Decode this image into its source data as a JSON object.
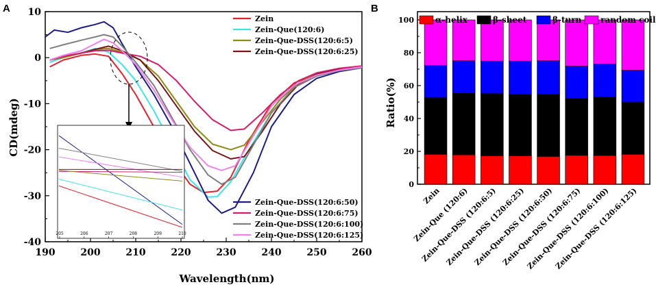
{
  "panel_labels": {
    "a": "A",
    "b": "B"
  },
  "chart_data": [
    {
      "type": "line",
      "panel": "A",
      "xlabel": "Wavelength(nm)",
      "ylabel": "CD(mdeg)",
      "xlim": [
        190,
        260
      ],
      "ylim": [
        -40,
        10
      ],
      "xticks": [
        190,
        200,
        210,
        220,
        230,
        240,
        250,
        260
      ],
      "yticks": [
        -40,
        -30,
        -20,
        -10,
        0,
        10
      ],
      "series": [
        {
          "name": "Zein",
          "color": "#e8202a",
          "points": [
            [
              191,
              -2.0
            ],
            [
              194,
              -0.5
            ],
            [
              198,
              0.5
            ],
            [
              201,
              0.8
            ],
            [
              204,
              0.3
            ],
            [
              207,
              -3.5
            ],
            [
              210,
              -8.0
            ],
            [
              214,
              -15.0
            ],
            [
              218,
              -22.0
            ],
            [
              222,
              -27.5
            ],
            [
              225,
              -29.3
            ],
            [
              228,
              -29.0
            ],
            [
              231,
              -26.0
            ],
            [
              235,
              -18.0
            ],
            [
              240,
              -10.0
            ],
            [
              245,
              -5.5
            ],
            [
              250,
              -3.5
            ],
            [
              255,
              -2.5
            ],
            [
              260,
              -2.0
            ]
          ]
        },
        {
          "name": "Zein-Que(120:6)",
          "color": "#39e6ec",
          "points": [
            [
              191,
              -1.0
            ],
            [
              194,
              0.0
            ],
            [
              198,
              1.0
            ],
            [
              201,
              2.0
            ],
            [
              204,
              1.2
            ],
            [
              207,
              -1.5
            ],
            [
              210,
              -5.0
            ],
            [
              214,
              -11.5
            ],
            [
              218,
              -19.0
            ],
            [
              222,
              -26.5
            ],
            [
              226,
              -30.3
            ],
            [
              228,
              -30.2
            ],
            [
              231,
              -27.0
            ],
            [
              235,
              -20.0
            ],
            [
              240,
              -12.0
            ],
            [
              245,
              -6.5
            ],
            [
              250,
              -4.0
            ],
            [
              255,
              -2.8
            ],
            [
              260,
              -2.2
            ]
          ]
        },
        {
          "name": "Zein-Que-DSS(120:6:5)",
          "color": "#8c8c14",
          "points": [
            [
              191,
              -0.5
            ],
            [
              194,
              0.0
            ],
            [
              198,
              1.0
            ],
            [
              201,
              1.8
            ],
            [
              204,
              2.0
            ],
            [
              207,
              1.2
            ],
            [
              211,
              -0.5
            ],
            [
              215,
              -4.0
            ],
            [
              219,
              -9.5
            ],
            [
              223,
              -15.0
            ],
            [
              227,
              -18.8
            ],
            [
              231,
              -20.0
            ],
            [
              234,
              -19.0
            ],
            [
              238,
              -14.0
            ],
            [
              242,
              -9.0
            ],
            [
              246,
              -5.5
            ],
            [
              250,
              -3.5
            ],
            [
              255,
              -2.5
            ],
            [
              260,
              -2.0
            ]
          ]
        },
        {
          "name": "Zein-Que-DSS(120:6:25)",
          "color": "#7a1414",
          "points": [
            [
              191,
              -0.5
            ],
            [
              194,
              0.3
            ],
            [
              198,
              1.0
            ],
            [
              201,
              1.8
            ],
            [
              204,
              2.5
            ],
            [
              207,
              1.5
            ],
            [
              211,
              -0.5
            ],
            [
              215,
              -5.0
            ],
            [
              219,
              -10.5
            ],
            [
              223,
              -16.0
            ],
            [
              227,
              -20.2
            ],
            [
              231,
              -22.0
            ],
            [
              234,
              -21.5
            ],
            [
              238,
              -16.0
            ],
            [
              242,
              -10.0
            ],
            [
              246,
              -5.8
            ],
            [
              250,
              -3.6
            ],
            [
              255,
              -2.5
            ],
            [
              260,
              -2.0
            ]
          ]
        },
        {
          "name": "Zein-Que-DSS(120:6:50)",
          "color": "#1b1b8c",
          "points": [
            [
              190,
              4.5
            ],
            [
              192,
              6.0
            ],
            [
              195,
              5.5
            ],
            [
              198,
              6.5
            ],
            [
              201,
              7.2
            ],
            [
              203,
              7.8
            ],
            [
              205,
              6.5
            ],
            [
              207,
              3.0
            ],
            [
              210,
              -2.0
            ],
            [
              214,
              -8.0
            ],
            [
              218,
              -15.0
            ],
            [
              222,
              -23.0
            ],
            [
              226,
              -31.0
            ],
            [
              229,
              -33.8
            ],
            [
              232,
              -32.5
            ],
            [
              236,
              -25.0
            ],
            [
              240,
              -15.0
            ],
            [
              245,
              -8.0
            ],
            [
              250,
              -4.5
            ],
            [
              255,
              -3.0
            ],
            [
              260,
              -2.2
            ]
          ]
        },
        {
          "name": "Zein-Que-DSS(120:6:75)",
          "color": "#d81b6c",
          "points": [
            [
              191,
              -0.5
            ],
            [
              194,
              0.3
            ],
            [
              198,
              1.0
            ],
            [
              201,
              1.5
            ],
            [
              204,
              1.6
            ],
            [
              207,
              1.0
            ],
            [
              211,
              0.3
            ],
            [
              215,
              -1.5
            ],
            [
              219,
              -5.0
            ],
            [
              223,
              -9.5
            ],
            [
              227,
              -13.5
            ],
            [
              231,
              -15.8
            ],
            [
              234,
              -15.5
            ],
            [
              238,
              -12.0
            ],
            [
              242,
              -8.0
            ],
            [
              246,
              -5.0
            ],
            [
              250,
              -3.3
            ],
            [
              255,
              -2.3
            ],
            [
              260,
              -1.8
            ]
          ]
        },
        {
          "name": "Zein-Que-DSS(120:6:100)",
          "color": "#7f7f7f",
          "points": [
            [
              191,
              2.0
            ],
            [
              194,
              2.8
            ],
            [
              198,
              3.8
            ],
            [
              201,
              4.5
            ],
            [
              203,
              5.0
            ],
            [
              205,
              4.5
            ],
            [
              207,
              2.5
            ],
            [
              210,
              -1.0
            ],
            [
              214,
              -6.0
            ],
            [
              218,
              -13.0
            ],
            [
              222,
              -20.0
            ],
            [
              226,
              -25.5
            ],
            [
              229,
              -27.5
            ],
            [
              232,
              -26.0
            ],
            [
              236,
              -19.0
            ],
            [
              240,
              -12.0
            ],
            [
              245,
              -6.5
            ],
            [
              250,
              -4.0
            ],
            [
              255,
              -2.8
            ],
            [
              260,
              -2.2
            ]
          ]
        },
        {
          "name": "Zein-Que-DSS(120:6:125)",
          "color": "#f080ee",
          "points": [
            [
              191,
              -0.5
            ],
            [
              194,
              0.5
            ],
            [
              198,
              1.5
            ],
            [
              201,
              3.0
            ],
            [
              203,
              4.0
            ],
            [
              205,
              3.2
            ],
            [
              207,
              1.5
            ],
            [
              210,
              -1.5
            ],
            [
              214,
              -7.0
            ],
            [
              218,
              -13.5
            ],
            [
              222,
              -19.5
            ],
            [
              226,
              -23.5
            ],
            [
              229,
              -24.5
            ],
            [
              232,
              -23.5
            ],
            [
              236,
              -17.0
            ],
            [
              240,
              -10.5
            ],
            [
              245,
              -6.0
            ],
            [
              250,
              -3.8
            ],
            [
              255,
              -2.7
            ],
            [
              260,
              -2.0
            ]
          ]
        }
      ],
      "legend_top": [
        "Zein",
        "Zein-Que(120:6)",
        "Zein-Que-DSS(120:6:5)",
        "Zein-Que-DSS(120:6:25)"
      ],
      "legend_bottom": [
        "Zein-Que-DSS(120:6:50)",
        "Zein-Que-DSS(120:6:75)",
        "Zein-Que-DSS(120:6:100)",
        "Zein-Que-DSS(120:6:125)"
      ],
      "inset": {
        "xlim": [
          205,
          210
        ],
        "xticks": [
          205,
          206,
          207,
          208,
          209,
          210
        ],
        "lines": [
          {
            "color": "#1b1b8c",
            "y": [
              0.05,
              0.97
            ]
          },
          {
            "color": "#7f7f7f",
            "y": [
              0.18,
              0.42
            ]
          },
          {
            "color": "#f080ee",
            "y": [
              0.27,
              0.48
            ]
          },
          {
            "color": "#7a1414",
            "y": [
              0.4,
              0.4
            ]
          },
          {
            "color": "#d81b6c",
            "y": [
              0.42,
              0.43
            ]
          },
          {
            "color": "#8c8c14",
            "y": [
              0.41,
              0.52
            ]
          },
          {
            "color": "#39e6ec",
            "y": [
              0.5,
              0.82
            ]
          },
          {
            "color": "#e8202a",
            "y": [
              0.57,
              1.0
            ]
          }
        ]
      }
    },
    {
      "type": "stacked_bar",
      "panel": "B",
      "ylabel": "Ratio(%)",
      "ylim": [
        0,
        100
      ],
      "yticks": [
        0,
        20,
        40,
        60,
        80,
        100
      ],
      "categories": [
        "Zein",
        "Zein-Que (120:6)",
        "Zein-Que-DSS (120:6:5)",
        "Zein-Que-DSS (120:6:25)",
        "Zein-Que-DSS (120:6:50)",
        "Zein-Que-DSS (120:6:75)",
        "Zein-Que-DSS (120:6:100)",
        "Zein-Que-DSS (120:6:125)"
      ],
      "series": [
        {
          "name": "α-helix",
          "color": "#ff0000",
          "values": [
            18.2,
            17.9,
            17.3,
            17.3,
            16.9,
            17.6,
            17.5,
            18.2
          ]
        },
        {
          "name": "β-sheet",
          "color": "#000000",
          "values": [
            34.4,
            37.4,
            37.8,
            37.3,
            38.0,
            34.5,
            35.6,
            31.8
          ]
        },
        {
          "name": "β-turn",
          "color": "#0000ff",
          "values": [
            19.6,
            19.8,
            19.8,
            20.3,
            20.2,
            19.7,
            20.1,
            19.3
          ]
        },
        {
          "name": "random coil",
          "color": "#ff00ff",
          "values": [
            27.8,
            24.9,
            25.1,
            25.1,
            24.9,
            28.2,
            26.8,
            30.7
          ]
        }
      ]
    }
  ]
}
